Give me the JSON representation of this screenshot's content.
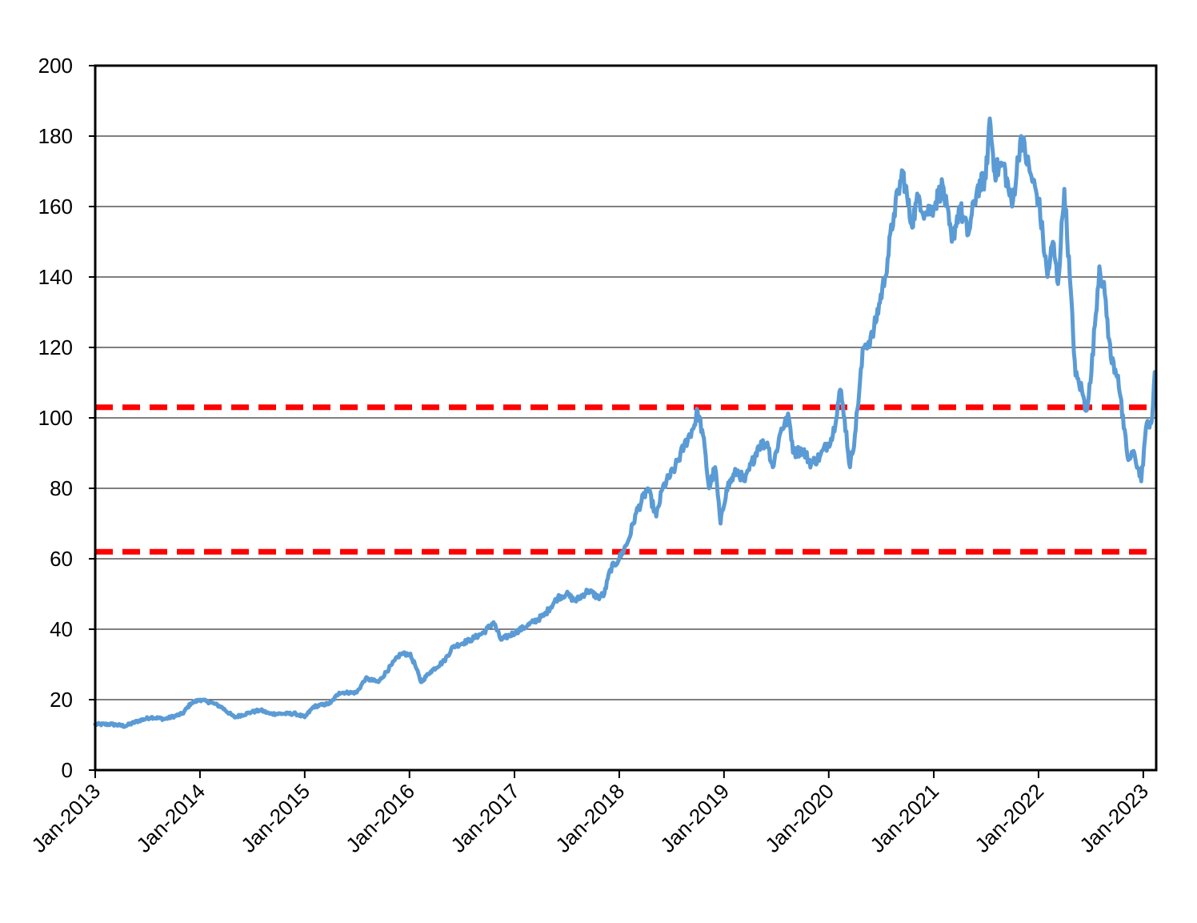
{
  "chart_data": {
    "type": "line",
    "title": "",
    "xlabel": "",
    "ylabel": "",
    "ylim": [
      0,
      200
    ],
    "yticks": [
      "0",
      "20",
      "40",
      "60",
      "80",
      "100",
      "120",
      "140",
      "160",
      "180",
      "200"
    ],
    "xlim": [
      "2013-01-01",
      "2023-02-15"
    ],
    "xticks": [
      {
        "date": "2013-01-01",
        "label": "Jan-2013"
      },
      {
        "date": "2014-01-01",
        "label": "Jan-2014"
      },
      {
        "date": "2015-01-01",
        "label": "Jan-2015"
      },
      {
        "date": "2016-01-01",
        "label": "Jan-2016"
      },
      {
        "date": "2017-01-01",
        "label": "Jan-2017"
      },
      {
        "date": "2018-01-01",
        "label": "Jan-2018"
      },
      {
        "date": "2019-01-01",
        "label": "Jan-2019"
      },
      {
        "date": "2020-01-01",
        "label": "Jan-2020"
      },
      {
        "date": "2021-01-01",
        "label": "Jan-2021"
      },
      {
        "date": "2022-01-01",
        "label": "Jan-2022"
      },
      {
        "date": "2023-01-01",
        "label": "Jan-2023"
      }
    ],
    "grid": "horizontal",
    "legend": "none",
    "series": [
      {
        "color": "#5B9BD5",
        "points": [
          [
            "2013-01-01",
            13
          ],
          [
            "2013-03-01",
            13
          ],
          [
            "2013-04-15",
            12.5
          ],
          [
            "2013-06-01",
            14
          ],
          [
            "2013-07-15",
            15
          ],
          [
            "2013-09-01",
            14.5
          ],
          [
            "2013-11-01",
            16
          ],
          [
            "2013-12-01",
            19
          ],
          [
            "2014-01-01",
            20
          ],
          [
            "2014-02-15",
            19
          ],
          [
            "2014-03-15",
            18
          ],
          [
            "2014-05-01",
            15
          ],
          [
            "2014-07-01",
            16.5
          ],
          [
            "2014-08-01",
            17
          ],
          [
            "2014-09-01",
            16
          ],
          [
            "2014-10-15",
            16
          ],
          [
            "2014-12-01",
            16
          ],
          [
            "2015-01-01",
            15
          ],
          [
            "2015-02-01",
            18
          ],
          [
            "2015-04-01",
            19
          ],
          [
            "2015-05-01",
            22
          ],
          [
            "2015-07-01",
            22
          ],
          [
            "2015-08-01",
            26
          ],
          [
            "2015-09-15",
            25
          ],
          [
            "2015-11-01",
            30
          ],
          [
            "2015-12-01",
            33
          ],
          [
            "2016-01-01",
            33
          ],
          [
            "2016-01-20",
            30
          ],
          [
            "2016-02-10",
            25
          ],
          [
            "2016-03-15",
            28
          ],
          [
            "2016-05-01",
            31
          ],
          [
            "2016-06-01",
            35
          ],
          [
            "2016-08-01",
            37
          ],
          [
            "2016-09-15",
            39
          ],
          [
            "2016-10-20",
            42
          ],
          [
            "2016-11-15",
            37
          ],
          [
            "2017-01-01",
            39
          ],
          [
            "2017-02-15",
            41
          ],
          [
            "2017-04-15",
            44
          ],
          [
            "2017-06-01",
            49
          ],
          [
            "2017-07-01",
            50
          ],
          [
            "2017-08-01",
            48
          ],
          [
            "2017-09-15",
            51
          ],
          [
            "2017-10-20",
            49
          ],
          [
            "2017-11-10",
            50
          ],
          [
            "2017-12-01",
            57
          ],
          [
            "2018-01-01",
            60
          ],
          [
            "2018-02-01",
            65
          ],
          [
            "2018-03-01",
            73
          ],
          [
            "2018-04-10",
            80
          ],
          [
            "2018-05-10",
            72
          ],
          [
            "2018-06-01",
            80
          ],
          [
            "2018-07-15",
            86
          ],
          [
            "2018-08-15",
            92
          ],
          [
            "2018-09-20",
            98
          ],
          [
            "2018-10-01",
            102
          ],
          [
            "2018-10-20",
            95
          ],
          [
            "2018-11-10",
            80
          ],
          [
            "2018-12-01",
            86
          ],
          [
            "2018-12-20",
            70
          ],
          [
            "2019-01-10",
            80
          ],
          [
            "2019-02-15",
            85
          ],
          [
            "2019-03-15",
            82
          ],
          [
            "2019-05-01",
            92
          ],
          [
            "2019-06-01",
            93
          ],
          [
            "2019-06-20",
            86
          ],
          [
            "2019-07-20",
            97
          ],
          [
            "2019-08-15",
            100
          ],
          [
            "2019-09-01",
            90
          ],
          [
            "2019-10-01",
            91
          ],
          [
            "2019-11-01",
            87
          ],
          [
            "2019-12-01",
            89
          ],
          [
            "2020-01-15",
            95
          ],
          [
            "2020-02-10",
            108
          ],
          [
            "2020-02-25",
            100
          ],
          [
            "2020-03-15",
            86
          ],
          [
            "2020-04-01",
            95
          ],
          [
            "2020-05-01",
            120
          ],
          [
            "2020-06-01",
            123
          ],
          [
            "2020-07-15",
            140
          ],
          [
            "2020-08-15",
            158
          ],
          [
            "2020-09-15",
            170
          ],
          [
            "2020-10-15",
            155
          ],
          [
            "2020-11-10",
            163
          ],
          [
            "2020-12-01",
            158
          ],
          [
            "2021-01-01",
            160
          ],
          [
            "2021-02-01",
            166
          ],
          [
            "2021-03-05",
            150
          ],
          [
            "2021-04-01",
            160
          ],
          [
            "2021-05-01",
            152
          ],
          [
            "2021-06-01",
            165
          ],
          [
            "2021-07-01",
            168
          ],
          [
            "2021-07-15",
            185
          ],
          [
            "2021-08-01",
            170
          ],
          [
            "2021-09-01",
            172
          ],
          [
            "2021-10-01",
            160
          ],
          [
            "2021-11-01",
            180
          ],
          [
            "2021-12-01",
            170
          ],
          [
            "2022-01-01",
            162
          ],
          [
            "2022-02-01",
            140
          ],
          [
            "2022-02-20",
            150
          ],
          [
            "2022-03-10",
            138
          ],
          [
            "2022-04-01",
            165
          ],
          [
            "2022-04-20",
            140
          ],
          [
            "2022-05-10",
            112
          ],
          [
            "2022-06-01",
            108
          ],
          [
            "2022-06-15",
            102
          ],
          [
            "2022-07-01",
            110
          ],
          [
            "2022-08-01",
            143
          ],
          [
            "2022-08-20",
            135
          ],
          [
            "2022-09-10",
            117
          ],
          [
            "2022-10-05",
            112
          ],
          [
            "2022-10-25",
            97
          ],
          [
            "2022-11-10",
            88
          ],
          [
            "2022-12-01",
            90
          ],
          [
            "2022-12-25",
            82
          ],
          [
            "2023-01-10",
            97
          ],
          [
            "2023-02-01",
            100
          ],
          [
            "2023-02-10",
            113
          ]
        ]
      }
    ],
    "reference_lines": [
      {
        "value": 103,
        "color": "#FF0000",
        "style": "dashed"
      },
      {
        "value": 62,
        "color": "#FF0000",
        "style": "dashed"
      }
    ]
  }
}
